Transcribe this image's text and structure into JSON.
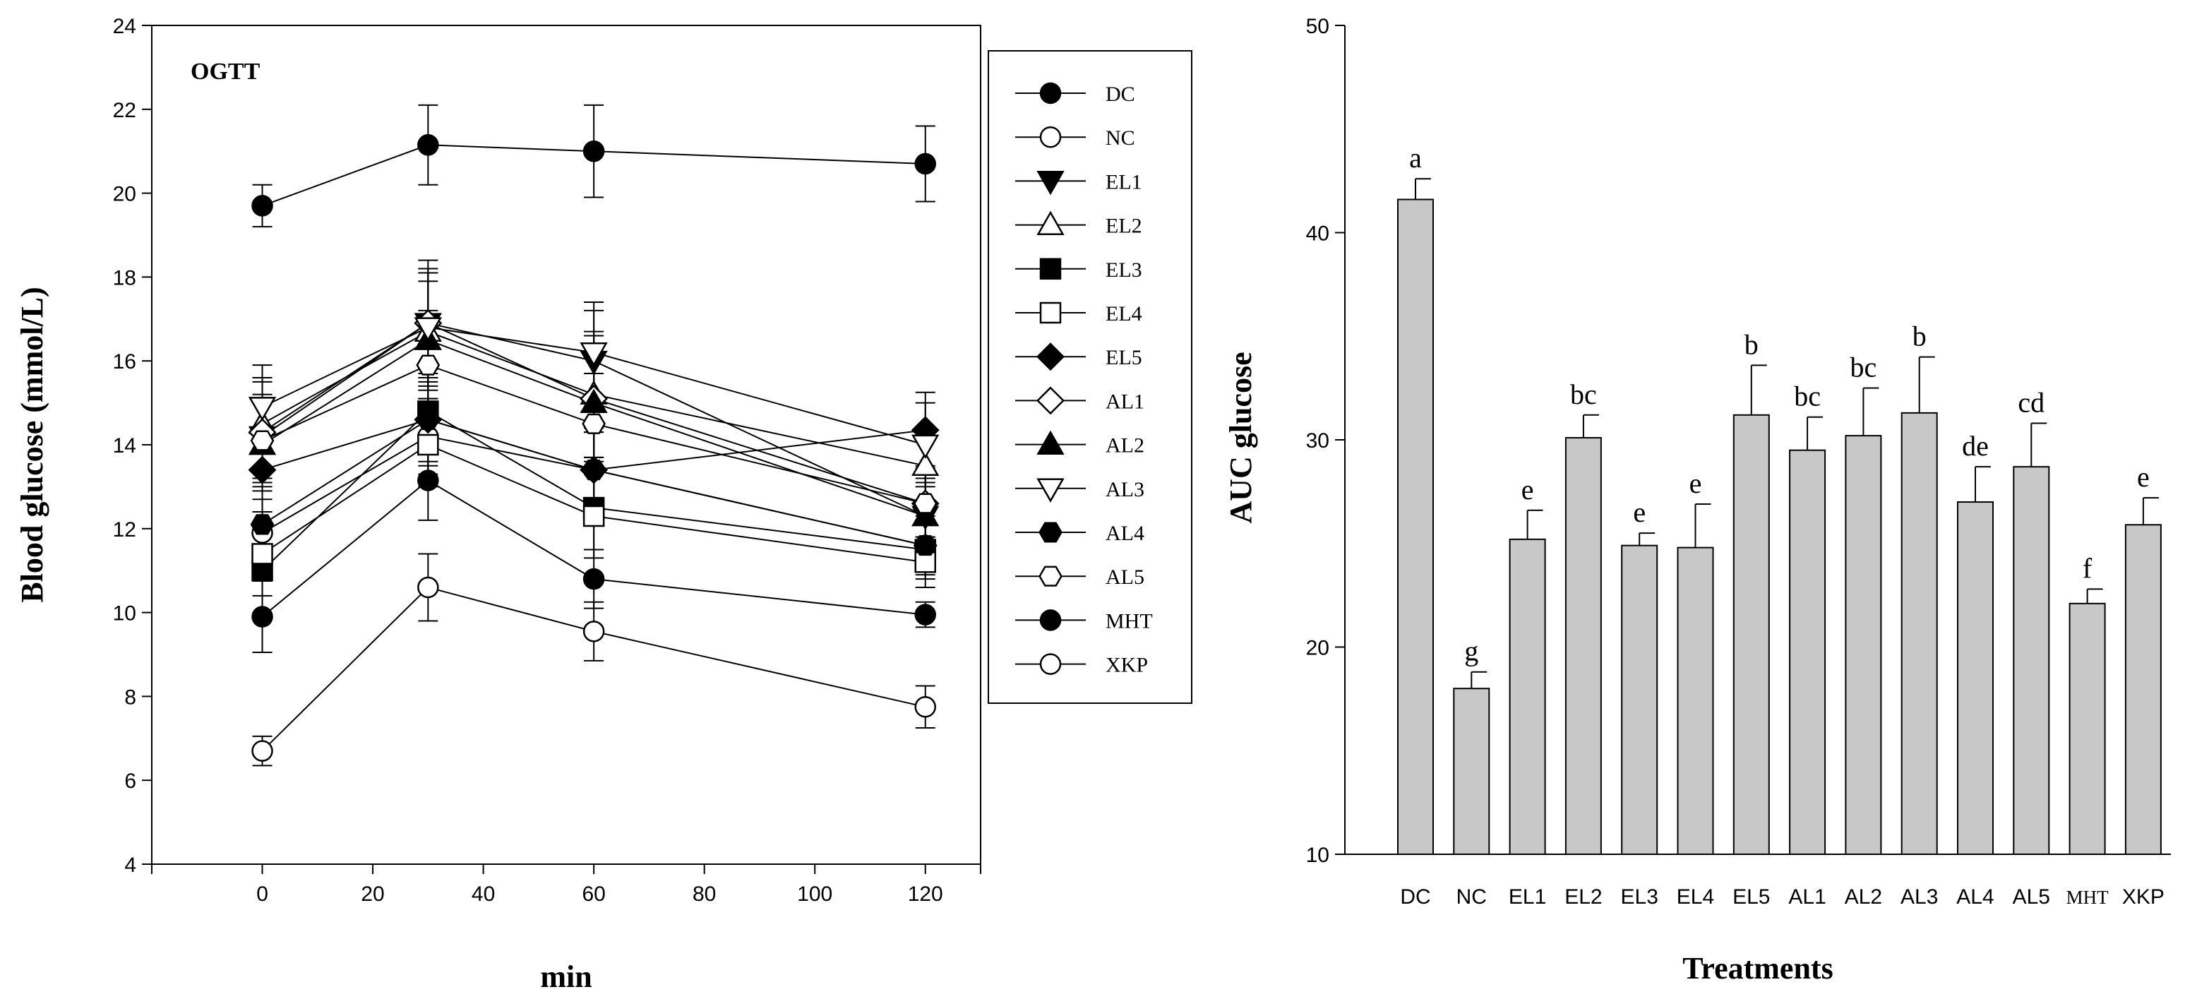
{
  "colors": {
    "bar_fill": "#c8c8c8",
    "ink": "#000000"
  },
  "chart_data": [
    {
      "type": "line",
      "panel_label": "OGTT",
      "xlabel": "min",
      "ylabel": "Blood glucose (mmol/L)",
      "x": [
        0,
        30,
        60,
        120
      ],
      "xlim": [
        -20,
        130
      ],
      "ylim": [
        4,
        24
      ],
      "xticks": [
        0,
        20,
        40,
        60,
        80,
        100,
        120
      ],
      "yticks": [
        4,
        6,
        8,
        10,
        12,
        14,
        16,
        18,
        20,
        22,
        24
      ],
      "legend": "right",
      "series": [
        {
          "name": "DC",
          "marker": "circle-filled",
          "values": [
            19.7,
            21.15,
            21.0,
            20.7
          ],
          "err": [
            0.5,
            0.95,
            1.1,
            0.9
          ]
        },
        {
          "name": "NC",
          "marker": "circle-open",
          "values": [
            11.9,
            14.2,
            13.4,
            11.6
          ],
          "err": [
            0.8,
            0.9,
            0.9,
            0.7
          ]
        },
        {
          "name": "EL1",
          "marker": "triangle-down-filled",
          "values": [
            14.2,
            16.9,
            16.0,
            12.3
          ],
          "err": [
            1.0,
            1.3,
            1.2,
            0.8
          ]
        },
        {
          "name": "EL2",
          "marker": "triangle-up-open",
          "values": [
            14.5,
            16.7,
            15.2,
            13.5
          ],
          "err": [
            1.1,
            1.4,
            1.5,
            0.9
          ]
        },
        {
          "name": "EL3",
          "marker": "square-filled",
          "values": [
            11.0,
            14.8,
            12.5,
            11.5
          ],
          "err": [
            1.0,
            1.0,
            1.0,
            0.7
          ]
        },
        {
          "name": "EL4",
          "marker": "square-open",
          "values": [
            11.4,
            14.0,
            12.3,
            11.2
          ],
          "err": [
            1.0,
            1.0,
            1.0,
            0.6
          ]
        },
        {
          "name": "EL5",
          "marker": "diamond-filled",
          "values": [
            13.4,
            14.6,
            13.4,
            14.35
          ],
          "err": [
            1.0,
            1.1,
            1.0,
            0.9
          ]
        },
        {
          "name": "AL1",
          "marker": "diamond-open",
          "values": [
            14.3,
            16.9,
            15.1,
            12.6
          ],
          "err": [
            1.2,
            1.5,
            1.5,
            0.9
          ]
        },
        {
          "name": "AL2",
          "marker": "triangle-up-filled",
          "values": [
            14.0,
            16.5,
            15.0,
            12.3
          ],
          "err": [
            1.1,
            1.4,
            1.3,
            0.9
          ]
        },
        {
          "name": "AL3",
          "marker": "triangle-down-open",
          "values": [
            14.9,
            16.8,
            16.2,
            14.0
          ],
          "err": [
            1.0,
            1.3,
            1.2,
            1.0
          ]
        },
        {
          "name": "AL4",
          "marker": "hexagon-filled",
          "values": [
            12.1,
            14.6,
            13.4,
            11.6
          ],
          "err": [
            0.9,
            1.0,
            0.9,
            0.6
          ]
        },
        {
          "name": "AL5",
          "marker": "hexagon-open",
          "values": [
            14.1,
            15.9,
            14.5,
            12.6
          ],
          "err": [
            1.0,
            1.3,
            1.2,
            0.8
          ]
        },
        {
          "name": "MHT",
          "marker": "circle-filled",
          "values": [
            9.9,
            13.15,
            10.8,
            9.95
          ],
          "err": [
            0.85,
            0.95,
            0.7,
            0.3
          ]
        },
        {
          "name": "XKP",
          "marker": "circle-open",
          "values": [
            6.7,
            10.6,
            9.55,
            7.75
          ],
          "err": [
            0.35,
            0.8,
            0.7,
            0.5
          ]
        }
      ]
    },
    {
      "type": "bar",
      "xlabel": "Treatments",
      "ylabel": "AUC glucose",
      "ylim": [
        10,
        50
      ],
      "yticks": [
        10,
        20,
        30,
        40,
        50
      ],
      "categories": [
        "DC",
        "NC",
        "EL1",
        "EL2",
        "EL3",
        "EL4",
        "EL5",
        "AL1",
        "AL2",
        "AL3",
        "AL4",
        "AL5",
        "MHT",
        "XKP"
      ],
      "values": [
        41.6,
        18.0,
        25.2,
        30.1,
        24.9,
        24.8,
        31.2,
        29.5,
        30.2,
        31.3,
        27.0,
        28.7,
        22.1,
        25.9
      ],
      "err": [
        1.0,
        0.8,
        1.4,
        1.1,
        0.6,
        2.1,
        2.4,
        1.6,
        2.3,
        2.7,
        1.7,
        2.1,
        0.7,
        1.3
      ],
      "labels": [
        "a",
        "g",
        "e",
        "bc",
        "e",
        "e",
        "b",
        "bc",
        "bc",
        "b",
        "de",
        "cd",
        "f",
        "e"
      ]
    }
  ]
}
